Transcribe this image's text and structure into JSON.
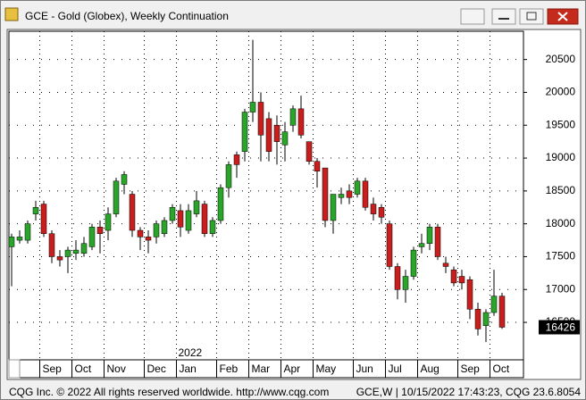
{
  "chart_data": {
    "type": "candlestick",
    "title": "GCE - Gold (Globex), Weekly Continuation",
    "categories": [
      null,
      null,
      null,
      null,
      "Sep",
      null,
      null,
      null,
      "Oct",
      null,
      null,
      null,
      "Nov",
      null,
      null,
      null,
      null,
      "Dec",
      null,
      null,
      null,
      "Jan",
      null,
      null,
      null,
      null,
      "Feb",
      null,
      null,
      null,
      "Mar",
      null,
      null,
      null,
      "Apr",
      null,
      null,
      null,
      "May",
      null,
      null,
      null,
      null,
      "Jun",
      null,
      null,
      null,
      "Jul",
      null,
      null,
      null,
      "Aug",
      null,
      null,
      null,
      null,
      "Sep",
      null,
      null,
      null,
      "Oct",
      null
    ],
    "open": [
      17650,
      17750,
      17750,
      18150,
      18300,
      17850,
      17500,
      17500,
      17550,
      17550,
      17650,
      17950,
      17900,
      18150,
      18600,
      18450,
      17900,
      17800,
      17800,
      17850,
      18050,
      18200,
      17900,
      18150,
      18300,
      17850,
      18050,
      18550,
      19050,
      19100,
      19700,
      19850,
      19600,
      19500,
      19200,
      19500,
      19750,
      19250,
      18950,
      18850,
      18050,
      18400,
      18500,
      18450,
      18650,
      18300,
      18250,
      18000,
      17350,
      17000,
      17200,
      17650,
      17700,
      17950,
      17400,
      17300,
      17200,
      17150,
      16700,
      16450,
      16650,
      16900
    ],
    "high": [
      17850,
      17900,
      18050,
      18350,
      18350,
      17900,
      17600,
      17650,
      17750,
      17800,
      18000,
      18050,
      18250,
      18700,
      18800,
      18500,
      17950,
      17900,
      18050,
      18100,
      18300,
      18300,
      18300,
      18500,
      18350,
      18100,
      18600,
      18950,
      19100,
      19750,
      20800,
      20000,
      19700,
      19650,
      19550,
      19800,
      19950,
      19250,
      19000,
      18850,
      18450,
      18550,
      18600,
      18700,
      18700,
      18400,
      18300,
      18050,
      17400,
      17300,
      17650,
      17850,
      18000,
      18000,
      17500,
      17350,
      17300,
      17200,
      16800,
      16700,
      17300,
      16950
    ],
    "low": [
      17050,
      17700,
      17700,
      18050,
      17800,
      17400,
      17350,
      17250,
      17450,
      17500,
      17600,
      17550,
      17750,
      18100,
      18450,
      17800,
      17600,
      17550,
      17700,
      17800,
      18000,
      17800,
      17850,
      18100,
      17800,
      17800,
      18000,
      18400,
      18700,
      18950,
      19550,
      18950,
      18950,
      18900,
      18950,
      19400,
      19300,
      18900,
      18550,
      17950,
      17850,
      18300,
      18300,
      18400,
      18200,
      18050,
      18000,
      17300,
      16850,
      16800,
      17150,
      17550,
      17600,
      17450,
      17250,
      17050,
      17000,
      16550,
      16300,
      16200,
      16600,
      16400
    ],
    "close": [
      17800,
      17800,
      18000,
      18250,
      17850,
      17500,
      17450,
      17600,
      17600,
      17700,
      17950,
      17850,
      18150,
      18650,
      18750,
      17900,
      17800,
      17750,
      18000,
      18050,
      18250,
      17950,
      18200,
      18350,
      17850,
      18050,
      18550,
      18900,
      18900,
      19700,
      19850,
      19350,
      19100,
      19250,
      19400,
      19750,
      19350,
      18950,
      18800,
      18050,
      18450,
      18450,
      18400,
      18650,
      18250,
      18150,
      18100,
      17350,
      17000,
      17200,
      17600,
      17700,
      17950,
      17500,
      17350,
      17100,
      17100,
      16700,
      16400,
      16650,
      16900,
      16426
    ],
    "up_color": "#2aa52a",
    "down_color": "#c81e1e",
    "ylim": [
      15930,
      20930
    ],
    "yticks": [
      16500,
      17000,
      17500,
      18000,
      18500,
      19000,
      19500,
      20000,
      20500
    ],
    "grid": true,
    "year_label": "2022"
  },
  "footer": {
    "left": "CQG Inc. © 2022 All rights reserved worldwide. http://www.cqg.com",
    "right": "GCE,W | 10/15/2022 17:43:23, CQG 23.6.8054"
  }
}
